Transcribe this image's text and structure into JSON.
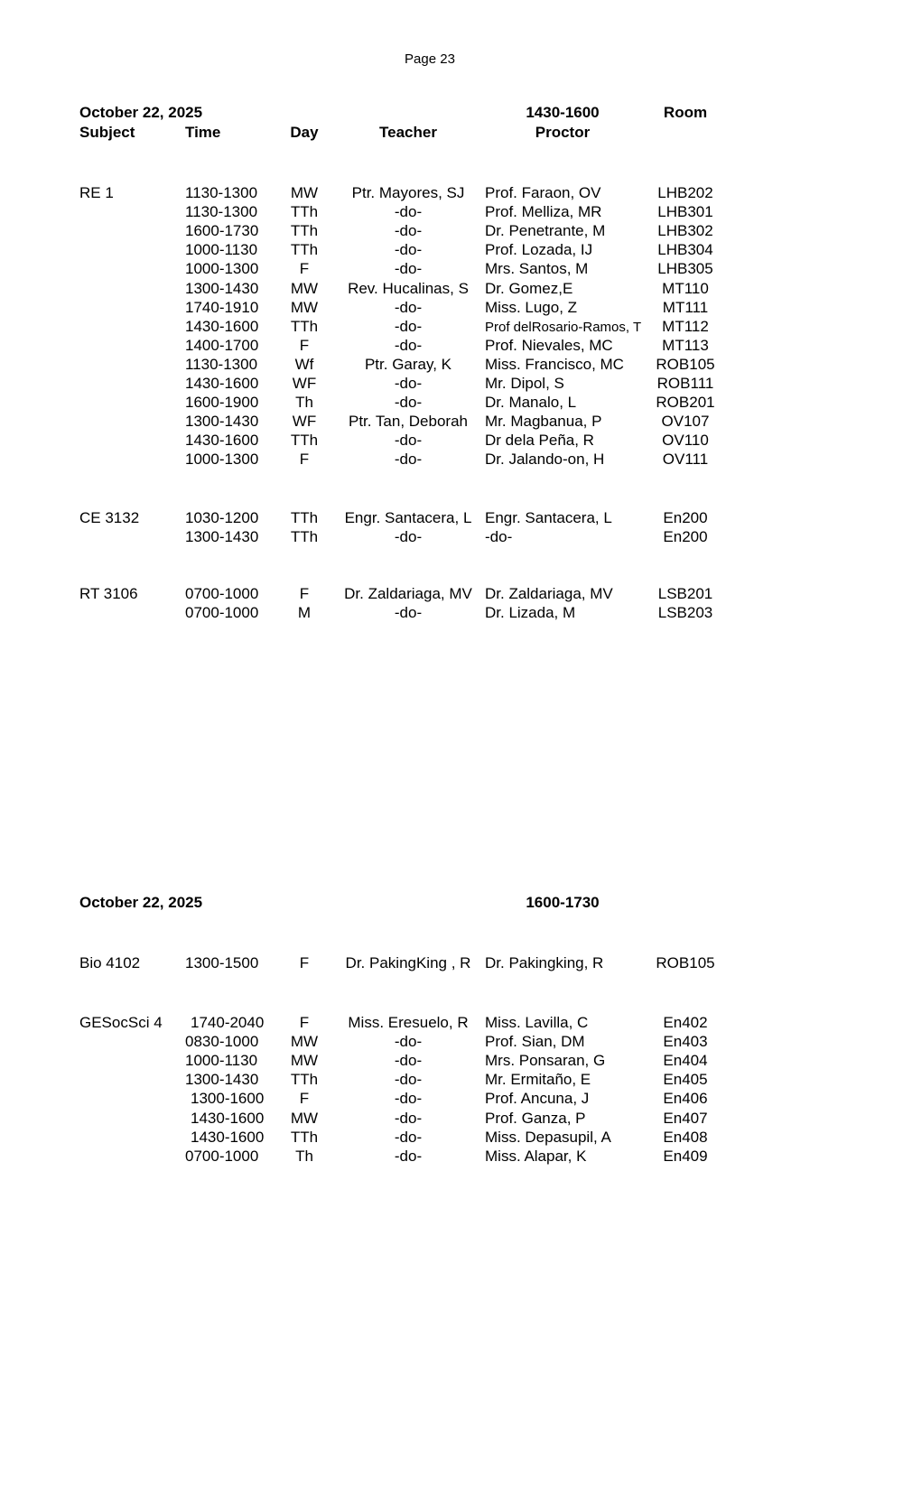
{
  "page_label": "Page 23",
  "block1": {
    "date": "October 22, 2025",
    "slot": "1430-1600",
    "headers": {
      "subject": "Subject",
      "time": "Time",
      "day": "Day",
      "teacher": "Teacher",
      "proctor": "Proctor",
      "room": "Room"
    },
    "groups": [
      {
        "subject": "RE 1",
        "rows": [
          [
            "1130-1300",
            "MW",
            "Ptr. Mayores, SJ",
            "Prof. Faraon, OV",
            "LHB202"
          ],
          [
            "1130-1300",
            "TTh",
            "-do-",
            "Prof. Melliza, MR",
            "LHB301"
          ],
          [
            "1600-1730",
            "TTh",
            "-do-",
            "Dr. Penetrante, M",
            "LHB302"
          ],
          [
            "1000-1130",
            "TTh",
            "-do-",
            "Prof. Lozada, IJ",
            "LHB304"
          ],
          [
            "1000-1300",
            "F",
            "-do-",
            "Mrs. Santos, M",
            "LHB305"
          ],
          [
            "1300-1430",
            "MW",
            "Rev. Hucalinas, S",
            "Dr. Gomez,E",
            "MT110"
          ],
          [
            "1740-1910",
            "MW",
            "-do-",
            "Miss. Lugo, Z",
            "MT111"
          ],
          [
            "1430-1600",
            "TTh",
            "-do-",
            "Prof delRosario-Ramos, T",
            "MT112"
          ],
          [
            "1400-1700",
            "F",
            "-do-",
            "Prof. Nievales, MC",
            "MT113"
          ],
          [
            "1130-1300",
            "Wf",
            "Ptr. Garay, K",
            "Miss. Francisco, MC",
            "ROB105"
          ],
          [
            "1430-1600",
            "WF",
            "-do-",
            "Mr. Dipol, S",
            "ROB111"
          ],
          [
            "1600-1900",
            "Th",
            "-do-",
            "Dr. Manalo, L",
            "ROB201"
          ],
          [
            "1300-1430",
            "WF",
            "Ptr. Tan, Deborah",
            "Mr. Magbanua, P",
            "OV107"
          ],
          [
            "1430-1600",
            "TTh",
            "-do-",
            "Dr dela Peña, R",
            "OV110"
          ],
          [
            "1000-1300",
            "F",
            "-do-",
            "Dr. Jalando-on, H",
            "OV111"
          ]
        ]
      },
      {
        "subject": "CE 3132",
        "rows": [
          [
            "1030-1200",
            "TTh",
            "Engr. Santacera, L",
            "Engr. Santacera, L",
            "En200"
          ],
          [
            "1300-1430",
            "TTh",
            "-do-",
            "-do-",
            "En200"
          ]
        ]
      },
      {
        "subject": "RT 3106",
        "rows": [
          [
            "0700-1000",
            "F",
            "Dr. Zaldariaga, MV",
            "Dr. Zaldariaga, MV",
            "LSB201"
          ],
          [
            "0700-1000",
            "M",
            "-do-",
            "Dr. Lizada, M",
            "LSB203"
          ]
        ]
      }
    ]
  },
  "block2": {
    "date": "October 22, 2025",
    "slot": "1600-1730",
    "groups": [
      {
        "subject": "Bio 4102",
        "rows": [
          [
            "1300-1500",
            "F",
            "Dr. PakingKing , R",
            "Dr. Pakingking, R",
            "ROB105"
          ]
        ]
      },
      {
        "subject": "GESocSci 4",
        "rows": [
          [
            "1740-2040",
            "F",
            "Miss. Eresuelo, R",
            "Miss. Lavilla, C",
            "En402"
          ],
          [
            "0830-1000",
            "MW",
            "-do-",
            "Prof. Sian, DM",
            "En403"
          ],
          [
            "1000-1130",
            "MW",
            "-do-",
            "Mrs. Ponsaran, G",
            "En404"
          ],
          [
            "1300-1430",
            "TTh",
            "-do-",
            "Mr. Ermitaño, E",
            "En405"
          ],
          [
            "1300-1600",
            "F",
            "-do-",
            "Prof. Ancuna, J",
            "En406"
          ],
          [
            "1430-1600",
            "MW",
            "-do-",
            "Prof. Ganza, P",
            "En407"
          ],
          [
            "1430-1600",
            "TTh",
            "-do-",
            "Miss. Depasupil, A",
            "En408"
          ],
          [
            "0700-1000",
            "Th",
            "-do-",
            "Miss. Alapar, K",
            "En409"
          ]
        ]
      }
    ]
  }
}
